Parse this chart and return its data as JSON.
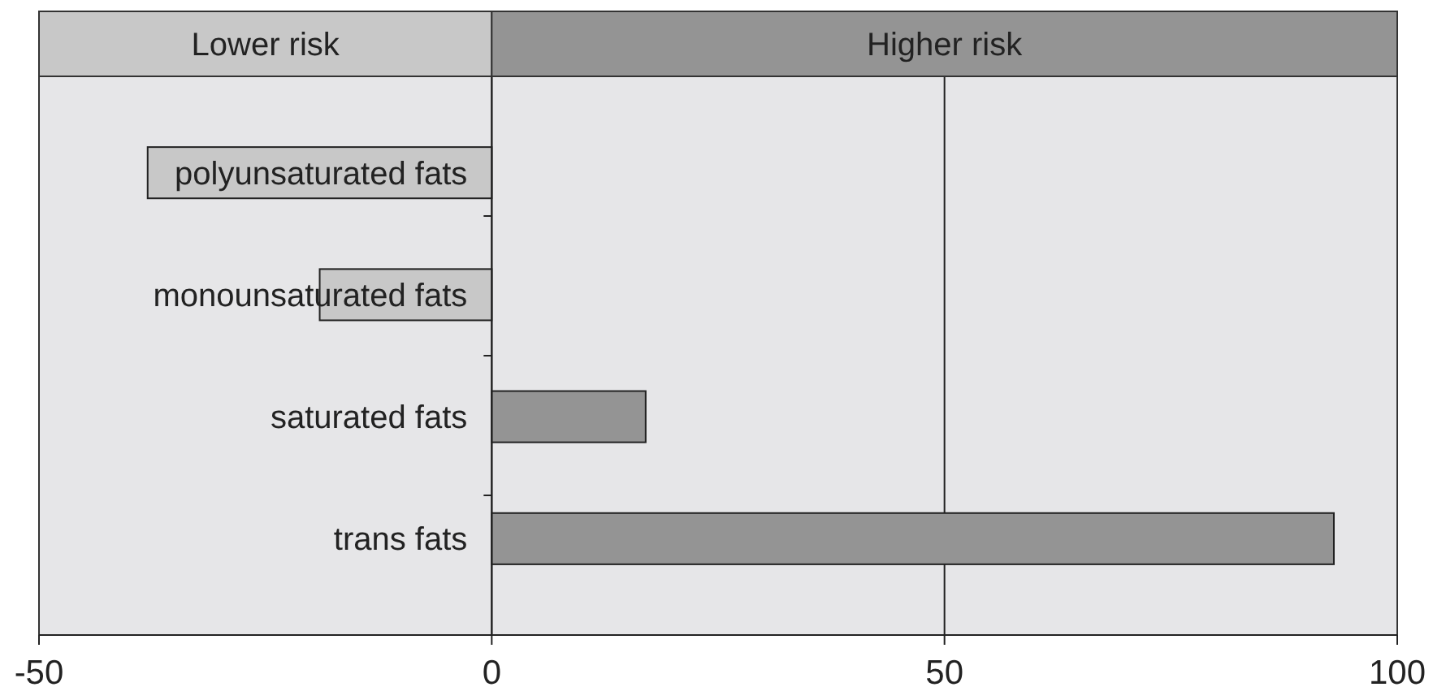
{
  "chart_data": {
    "type": "bar",
    "orientation": "horizontal",
    "categories": [
      "polyunsaturated fats",
      "monounsaturated fats",
      "saturated fats",
      "trans fats"
    ],
    "values": [
      -38,
      -19,
      17,
      93
    ],
    "colors": [
      "#c8c8c8",
      "#c8c8c8",
      "#949494",
      "#949494"
    ],
    "xlim": [
      -50,
      100
    ],
    "xticks": [
      -50,
      0,
      50,
      100
    ],
    "annotations": [
      "Lower risk",
      "Higher risk"
    ],
    "grid": "x"
  }
}
